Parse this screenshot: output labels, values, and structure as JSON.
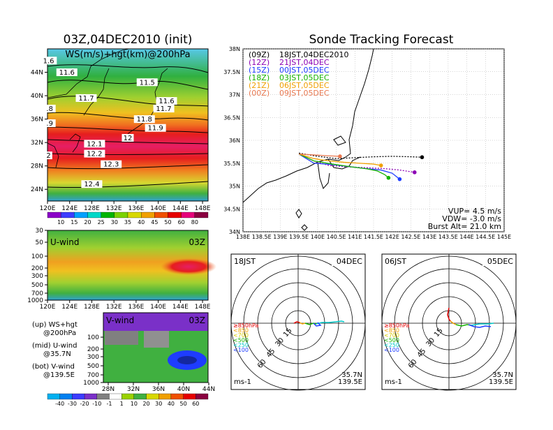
{
  "left_title": "03Z,04DEC2010 (init)",
  "right_title": "Sonde Tracking Forecast",
  "colors": {
    "purple": "#8c00b4",
    "blue": "#1e3cff",
    "green": "#16b400",
    "orange": "#f0a000",
    "salmon": "#e87850",
    "black": "#000000",
    "red": "#e60000"
  },
  "chart_data": [
    {
      "type": "heatmap",
      "id": "ws-map",
      "title": "WS(m/s)+hgt(km)@200hPa",
      "x_ticks": [
        "120E",
        "124E",
        "128E",
        "132E",
        "136E",
        "140E",
        "144E",
        "148E"
      ],
      "y_ticks": [
        "24N",
        "28N",
        "32N",
        "36N",
        "40N",
        "44N"
      ],
      "xlim": [
        120,
        149
      ],
      "ylim": [
        22,
        48
      ],
      "height_labels": [
        {
          "text": "11.6",
          "lon": 123.5,
          "lat": 43.7
        },
        {
          "text": "11.5",
          "lon": 138.0,
          "lat": 42.0
        },
        {
          "text": "11.7",
          "lon": 127.0,
          "lat": 39.3
        },
        {
          "text": "11.6",
          "lon": 141.5,
          "lat": 38.8
        },
        {
          "text": "11.7",
          "lon": 141.0,
          "lat": 37.5
        },
        {
          "text": "11.8",
          "lon": 137.5,
          "lat": 35.7
        },
        {
          "text": "11.9",
          "lon": 139.5,
          "lat": 34.2
        },
        {
          "text": "12",
          "lon": 134.5,
          "lat": 32.5
        },
        {
          "text": "12.1",
          "lon": 128.5,
          "lat": 31.5
        },
        {
          "text": "12.2",
          "lon": 128.5,
          "lat": 29.8
        },
        {
          "text": "12.3",
          "lon": 131.5,
          "lat": 28.0
        },
        {
          "text": "12.4",
          "lon": 128.0,
          "lat": 24.6
        },
        {
          "text": "1.6",
          "lon": 120.2,
          "lat": 45.7
        },
        {
          "text": ".8",
          "lon": 120.4,
          "lat": 37.5
        },
        {
          "text": ".9",
          "lon": 120.4,
          "lat": 35.0
        },
        {
          "text": "2",
          "lon": 120.2,
          "lat": 29.5
        }
      ],
      "colorbar_labels": [
        "10",
        "15",
        "20",
        "25",
        "30",
        "35",
        "40",
        "45",
        "50",
        "60",
        "80"
      ]
    },
    {
      "type": "heatmap",
      "id": "u-wind",
      "title": "U-wind",
      "time_label": "03Z",
      "x_ticks": [
        "120E",
        "124E",
        "128E",
        "132E",
        "136E",
        "140E",
        "144E",
        "148E"
      ],
      "y_ticks": [
        "30",
        "50",
        "100",
        "200",
        "300",
        "500",
        "700",
        "1000"
      ],
      "note": "@35.7N"
    },
    {
      "type": "heatmap",
      "id": "v-wind",
      "title": "V-wind",
      "time_label": "03Z",
      "x_ticks": [
        "28N",
        "32N",
        "36N",
        "40N",
        "44N"
      ],
      "y_ticks": [
        "100",
        "200",
        "300",
        "500",
        "700",
        "1000"
      ],
      "colorbar_labels": [
        "-40",
        "-30",
        "-20",
        "-10",
        "-1",
        "1",
        "10",
        "20",
        "30",
        "40",
        "50",
        "60"
      ]
    },
    {
      "type": "line",
      "id": "track-map",
      "x_ticks": [
        "138E",
        "138.5E",
        "139E",
        "139.5E",
        "140E",
        "140.5E",
        "141E",
        "141.5E",
        "142E",
        "142.5E",
        "143E",
        "143.5E",
        "144E",
        "144.5E",
        "145E"
      ],
      "y_ticks": [
        "34N",
        "34.5N",
        "35N",
        "35.5N",
        "36N",
        "36.5N",
        "37N",
        "37.5N",
        "38N"
      ],
      "xlim": [
        138,
        145
      ],
      "ylim": [
        34,
        38
      ],
      "legend": [
        {
          "code": "(09Z)",
          "time": "18JST,04DEC2010",
          "color": "#000000"
        },
        {
          "code": "(12Z)",
          "time": "21JST,04DEC",
          "color": "#8c00b4"
        },
        {
          "code": "(15Z)",
          "time": "00JST,05DEC",
          "color": "#1e3cff"
        },
        {
          "code": "(18Z)",
          "time": "03JST,05DEC",
          "color": "#16b400"
        },
        {
          "code": "(21Z)",
          "time": "06JST,05DEC",
          "color": "#f0a000"
        },
        {
          "code": "(00Z)",
          "time": "09JST,05DEC",
          "color": "#e87850"
        }
      ],
      "series": [
        {
          "name": "(09Z)",
          "color": "#000000",
          "x": [
            139.5,
            140.0,
            140.5,
            141.0,
            141.5,
            142.0,
            142.5,
            142.8
          ],
          "y": [
            35.72,
            35.65,
            35.6,
            35.62,
            35.64,
            35.65,
            35.64,
            35.63
          ]
        },
        {
          "name": "(12Z)",
          "color": "#8c00b4",
          "x": [
            139.5,
            139.9,
            140.3,
            140.8,
            141.3,
            141.8,
            142.2,
            142.6
          ],
          "y": [
            35.7,
            35.55,
            35.45,
            35.42,
            35.4,
            35.38,
            35.35,
            35.3
          ]
        },
        {
          "name": "(15Z)",
          "color": "#1e3cff",
          "x": [
            139.5,
            139.9,
            140.4,
            140.9,
            141.3,
            141.7,
            142.0,
            142.2
          ],
          "y": [
            35.7,
            35.5,
            35.47,
            35.42,
            35.38,
            35.35,
            35.28,
            35.15
          ]
        },
        {
          "name": "(18Z)",
          "color": "#16b400",
          "x": [
            139.5,
            139.9,
            140.4,
            140.9,
            141.3,
            141.6,
            141.8,
            141.9
          ],
          "y": [
            35.7,
            35.55,
            35.48,
            35.42,
            35.38,
            35.33,
            35.25,
            35.18
          ]
        },
        {
          "name": "(21Z)",
          "color": "#f0a000",
          "x": [
            139.5,
            139.9,
            140.3,
            140.7,
            141.1,
            141.5,
            141.7
          ],
          "y": [
            35.7,
            35.6,
            35.55,
            35.52,
            35.5,
            35.48,
            35.45
          ]
        },
        {
          "name": "(00Z)",
          "color": "#e87850",
          "x": [
            139.5,
            139.9,
            140.3,
            140.6
          ],
          "y": [
            35.7,
            35.68,
            35.66,
            35.65
          ]
        }
      ],
      "annotations": {
        "vup": "VUP= 4.5 m/s",
        "vdw": "VDW= -3.0 m/s",
        "burst": "Burst Alt= 21.0 km"
      }
    },
    {
      "type": "scatter",
      "id": "polar-18",
      "time_left": "18JST",
      "time_right": "04DEC",
      "ring_labels": [
        "15",
        "30",
        "45",
        "60"
      ],
      "pressure_legend": [
        "≥850hPa",
        "<850",
        "<700",
        "<500",
        "<250",
        "<100"
      ],
      "pressure_colors": [
        "#e60000",
        "#f0a000",
        "#d8c800",
        "#16b400",
        "#00c8c8",
        "#1e3cff"
      ],
      "unit": "ms-1",
      "lat": "35.7N",
      "lon": "139.5E"
    },
    {
      "type": "scatter",
      "id": "polar-06",
      "time_left": "06JST",
      "time_right": "05DEC",
      "ring_labels": [
        "15",
        "30",
        "45",
        "60"
      ],
      "pressure_legend": [
        "≥850hPa",
        "<850",
        "<700",
        "<500",
        "<250",
        "<100"
      ],
      "pressure_colors": [
        "#e60000",
        "#f0a000",
        "#d8c800",
        "#16b400",
        "#00c8c8",
        "#1e3cff"
      ],
      "unit": "ms-1",
      "lat": "35.7N",
      "lon": "139.5E"
    }
  ],
  "side_notes": [
    {
      "head": "(up) WS+hgt",
      "sub": "@200hPa"
    },
    {
      "head": "(mid) U-wind",
      "sub": "@35.7N"
    },
    {
      "head": "(bot) V-wind",
      "sub": "@139.5E"
    }
  ]
}
